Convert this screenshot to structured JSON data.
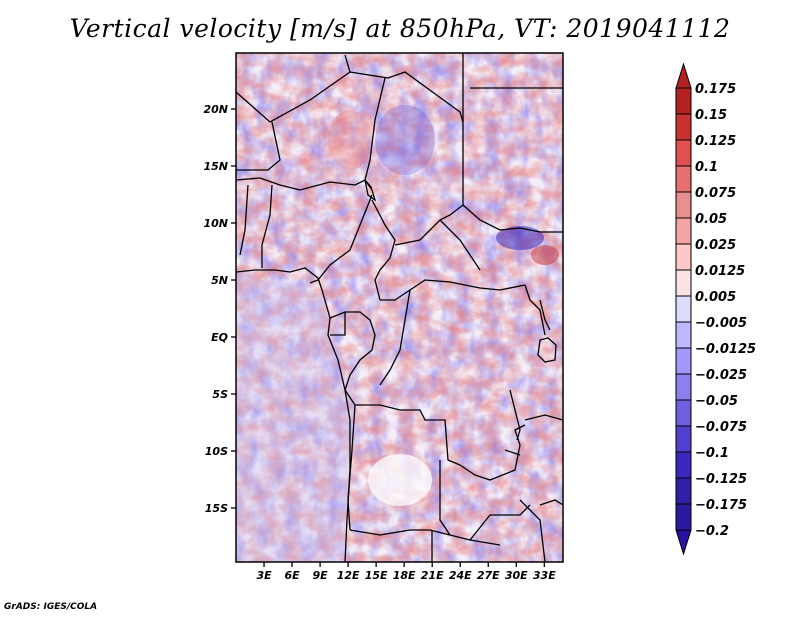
{
  "title": "Vertical velocity [m/s] at 850hPa, VT: 2019041112",
  "footer": "GrADS: IGES/COLA",
  "chart_data": {
    "type": "heatmap",
    "title": "Vertical velocity [m/s] at 850hPa, VT: 2019041112",
    "variable": "Vertical velocity",
    "units": "m/s",
    "level": "850hPa",
    "valid_time": "2019041112",
    "x_range_deg_east": [
      0,
      35
    ],
    "y_range_deg_north": [
      -20,
      25
    ],
    "x_ticks": [
      {
        "value": 3,
        "label": "3E"
      },
      {
        "value": 6,
        "label": "6E"
      },
      {
        "value": 9,
        "label": "9E"
      },
      {
        "value": 12,
        "label": "12E"
      },
      {
        "value": 15,
        "label": "15E"
      },
      {
        "value": 18,
        "label": "18E"
      },
      {
        "value": 21,
        "label": "21E"
      },
      {
        "value": 24,
        "label": "24E"
      },
      {
        "value": 27,
        "label": "27E"
      },
      {
        "value": 30,
        "label": "30E"
      },
      {
        "value": 33,
        "label": "33E"
      }
    ],
    "y_ticks": [
      {
        "value": 20,
        "label": "20N"
      },
      {
        "value": 15,
        "label": "15N"
      },
      {
        "value": 10,
        "label": "10N"
      },
      {
        "value": 5,
        "label": "5N"
      },
      {
        "value": 0,
        "label": "EQ"
      },
      {
        "value": -5,
        "label": "5S"
      },
      {
        "value": -10,
        "label": "10S"
      },
      {
        "value": -15,
        "label": "15S"
      }
    ],
    "colorbar": {
      "placement": "right",
      "extend": "both",
      "levels": [
        {
          "label": "0.175",
          "color": "#b22222"
        },
        {
          "label": "0.15",
          "color": "#c83232"
        },
        {
          "label": "0.125",
          "color": "#e05050"
        },
        {
          "label": "0.1",
          "color": "#e87070"
        },
        {
          "label": "0.075",
          "color": "#e89090"
        },
        {
          "label": "0.05",
          "color": "#f4a4a4"
        },
        {
          "label": "0.025",
          "color": "#fcc8c8"
        },
        {
          "label": "0.0125",
          "color": "#fde4e4"
        },
        {
          "label": "0.005",
          "color": "#ffffff"
        },
        {
          "label": "-0.005",
          "color": "#dcdcfc"
        },
        {
          "label": "-0.0125",
          "color": "#c0b8fc"
        },
        {
          "label": "-0.025",
          "color": "#a498fc"
        },
        {
          "label": "-0.05",
          "color": "#8c80f0"
        },
        {
          "label": "-0.075",
          "color": "#7060e0"
        },
        {
          "label": "-0.1",
          "color": "#5040d0"
        },
        {
          "label": "-0.125",
          "color": "#3c28c0"
        },
        {
          "label": "-0.175",
          "color": "#3020a8"
        },
        {
          "label": "-0.2",
          "color": "#2a1aa0"
        }
      ],
      "top_arrow_color": "#b22222",
      "bottom_arrow_color": "#2a10a0"
    },
    "field_description": "Noisy mottled pattern of weak ascent (blue) and descent (red) over Central Africa; strongest blue/red cores over South Sudan/Ethiopia border (~8N, 30E); broad weak red/white over Angola plateau; mostly light blue over Gulf of Guinea ocean."
  }
}
